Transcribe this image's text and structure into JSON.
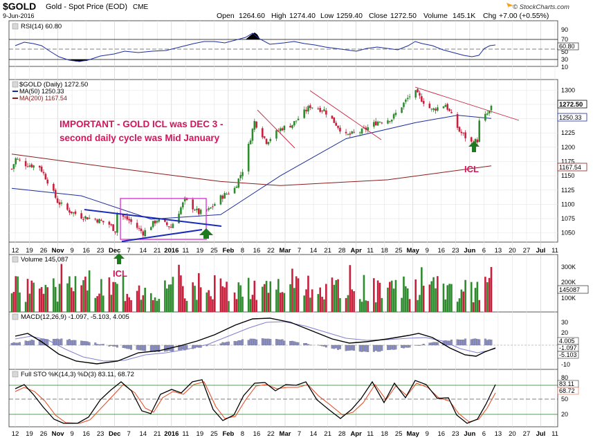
{
  "header": {
    "symbol": "$GOLD",
    "name": "Gold - Spot Price (EOD)",
    "exchange": "CME",
    "date": "9-Jun-2016",
    "open_label": "Open",
    "open": "1264.60",
    "high_label": "High",
    "high": "1274.40",
    "low_label": "Low",
    "low": "1259.40",
    "close_label": "Close",
    "close": "1272.50",
    "volume_label": "Volume",
    "volume": "145.1K",
    "chg_label": "Chg",
    "chg": "+7.00 (+0.55%)",
    "brand": "© StockCharts.com",
    "brand_arrow_color": "#f4a11d"
  },
  "panels": {
    "rsi": {
      "legend": "RSI(14) 60.80",
      "tick_labels": [
        "90",
        "70",
        "50",
        "30",
        "10"
      ],
      "value_tag": "60.80"
    },
    "price": {
      "legend_main": "$GOLD (Daily) 1272.50",
      "legend_ma50": "MA(50) 1250.33",
      "legend_ma200": "MA(200) 1167.54",
      "tick_labels": [
        "1300",
        "1275",
        "1250",
        "1225",
        "1200",
        "1175",
        "1150",
        "1125",
        "1100",
        "1075",
        "1050"
      ],
      "tags": {
        "close": "1272.50",
        "ma50": "1250.33",
        "ma200": "1167.54"
      },
      "annotation_line1": "IMPORTANT -  GOLD ICL was DEC 3 -",
      "annotation_line2": "second daily cycle was Mid January",
      "icl_label": "ICL"
    },
    "volume": {
      "legend": "Volume 145,087",
      "tick_labels": [
        "300K",
        "200K",
        "100K"
      ],
      "value_tag": "145087",
      "icl_label": "ICL"
    },
    "macd": {
      "legend": "MACD(12,26,9) -1.097, -5.103, 4.005",
      "tick_labels": [
        "30",
        "20",
        "10",
        "0",
        "-10"
      ],
      "tags": [
        "4.005",
        "-1.097",
        "-5.103"
      ]
    },
    "sto": {
      "legend": "Full STO %K(14,3) %D(3) 83.11, 68.72",
      "tick_labels": [
        "80",
        "50",
        "20"
      ],
      "tags": [
        "83.11",
        "68.72"
      ]
    }
  },
  "x_axis_labels": [
    "12",
    "19",
    "26",
    "Nov",
    "9",
    "16",
    "23",
    "Dec",
    "7",
    "14",
    "21",
    "2016",
    "11",
    "19",
    "25",
    "Feb",
    "8",
    "16",
    "22",
    "Mar",
    "7",
    "14",
    "21",
    "28",
    "Apr",
    "11",
    "18",
    "25",
    "May",
    "9",
    "16",
    "23",
    "Jun",
    "6",
    "13",
    "20",
    "27",
    "Jul",
    "11"
  ],
  "colors": {
    "up": "#2e8b2e",
    "down": "#c8203c",
    "ma50": "#1a2c9e",
    "ma200": "#8b1a1a",
    "annotation": "#d4145a",
    "box": "#e040e0",
    "trend_blue": "#1a2ab8",
    "arrow_green": "#1e7a1e"
  },
  "chart_data": {
    "type": "candlestick",
    "title": "$GOLD Gold - Spot Price (EOD) CME",
    "x_range": [
      "2015-10-12",
      "2016-07-11"
    ],
    "price_ylim": [
      1040,
      1310
    ],
    "price_series": [
      {
        "date": "2015-10-12",
        "close": 1162
      },
      {
        "date": "2015-10-14",
        "close": 1180
      },
      {
        "date": "2015-10-19",
        "close": 1170
      },
      {
        "date": "2015-10-26",
        "close": 1166
      },
      {
        "date": "2015-10-30",
        "close": 1141
      },
      {
        "date": "2015-11-04",
        "close": 1105
      },
      {
        "date": "2015-11-09",
        "close": 1090
      },
      {
        "date": "2015-11-16",
        "close": 1079
      },
      {
        "date": "2015-11-23",
        "close": 1074
      },
      {
        "date": "2015-11-30",
        "close": 1065
      },
      {
        "date": "2015-12-03",
        "close": 1054
      },
      {
        "date": "2015-12-04",
        "close": 1084
      },
      {
        "date": "2015-12-10",
        "close": 1072
      },
      {
        "date": "2015-12-17",
        "close": 1050
      },
      {
        "date": "2015-12-24",
        "close": 1073
      },
      {
        "date": "2015-12-31",
        "close": 1060
      },
      {
        "date": "2016-01-07",
        "close": 1108
      },
      {
        "date": "2016-01-14",
        "close": 1085
      },
      {
        "date": "2016-01-19",
        "close": 1090
      },
      {
        "date": "2016-01-25",
        "close": 1112
      },
      {
        "date": "2016-02-01",
        "close": 1128
      },
      {
        "date": "2016-02-05",
        "close": 1160
      },
      {
        "date": "2016-02-11",
        "close": 1245
      },
      {
        "date": "2016-02-17",
        "close": 1210
      },
      {
        "date": "2016-02-24",
        "close": 1232
      },
      {
        "date": "2016-03-01",
        "close": 1240
      },
      {
        "date": "2016-03-10",
        "close": 1272
      },
      {
        "date": "2016-03-17",
        "close": 1265
      },
      {
        "date": "2016-03-28",
        "close": 1220
      },
      {
        "date": "2016-04-05",
        "close": 1228
      },
      {
        "date": "2016-04-13",
        "close": 1245
      },
      {
        "date": "2016-04-20",
        "close": 1250
      },
      {
        "date": "2016-04-29",
        "close": 1290
      },
      {
        "date": "2016-05-02",
        "close": 1295
      },
      {
        "date": "2016-05-10",
        "close": 1265
      },
      {
        "date": "2016-05-17",
        "close": 1275
      },
      {
        "date": "2016-05-24",
        "close": 1228
      },
      {
        "date": "2016-05-30",
        "close": 1208
      },
      {
        "date": "2016-06-02",
        "close": 1212
      },
      {
        "date": "2016-06-03",
        "close": 1244
      },
      {
        "date": "2016-06-08",
        "close": 1262
      },
      {
        "date": "2016-06-09",
        "close": 1272.5
      }
    ],
    "ma50": [
      {
        "date": "2015-10-12",
        "value": 1128
      },
      {
        "date": "2015-11-16",
        "value": 1115
      },
      {
        "date": "2015-12-21",
        "value": 1074
      },
      {
        "date": "2016-01-25",
        "value": 1082
      },
      {
        "date": "2016-02-24",
        "value": 1150
      },
      {
        "date": "2016-03-28",
        "value": 1215
      },
      {
        "date": "2016-05-02",
        "value": 1243
      },
      {
        "date": "2016-05-23",
        "value": 1256
      },
      {
        "date": "2016-06-09",
        "value": 1250.33
      }
    ],
    "ma200": [
      {
        "date": "2015-10-12",
        "value": 1188
      },
      {
        "date": "2015-11-30",
        "value": 1165
      },
      {
        "date": "2016-01-25",
        "value": 1140
      },
      {
        "date": "2016-02-24",
        "value": 1133
      },
      {
        "date": "2016-04-18",
        "value": 1143
      },
      {
        "date": "2016-06-09",
        "value": 1167.54
      }
    ],
    "rsi": {
      "ylim": [
        10,
        90
      ],
      "last": 60.8,
      "levels": [
        70,
        50,
        30
      ]
    },
    "volume": {
      "ylim": [
        0,
        350000
      ],
      "last": 145087
    },
    "macd": {
      "ylim": [
        -15,
        35
      ],
      "macd": -1.097,
      "signal": -5.103,
      "histogram": 4.005
    },
    "stochastic": {
      "ylim": [
        0,
        100
      ],
      "k": 83.11,
      "d": 68.72,
      "levels": [
        80,
        20
      ]
    }
  }
}
